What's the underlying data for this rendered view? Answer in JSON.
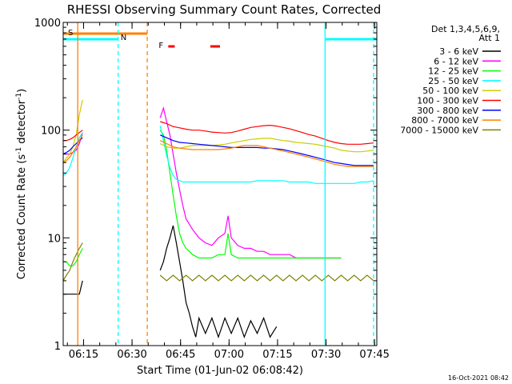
{
  "chart_data": {
    "type": "line",
    "title": "RHESSI Observing Summary Count Rates, Corrected",
    "xlabel": "Start Time (01-Jun-02 06:08:42)",
    "ylabel_main": "Corrected Count Rate (s",
    "ylabel_sup1": "-1",
    "ylabel_mid": " detector",
    "ylabel_sup2": "-1",
    "ylabel_end": ")",
    "yscale": "log",
    "ylim": [
      1,
      1000
    ],
    "xlim_minutes": [
      0,
      97
    ],
    "yticks": [
      {
        "value": 1,
        "label": "1"
      },
      {
        "value": 10,
        "label": "10"
      },
      {
        "value": 100,
        "label": "100"
      },
      {
        "value": 1000,
        "label": "1000"
      }
    ],
    "xticks": [
      {
        "minute": 6.3,
        "label": "06:15"
      },
      {
        "minute": 21.3,
        "label": "06:30"
      },
      {
        "minute": 36.3,
        "label": "06:45"
      },
      {
        "minute": 51.3,
        "label": "07:00"
      },
      {
        "minute": 66.3,
        "label": "07:15"
      },
      {
        "minute": 81.3,
        "label": "07:30"
      },
      {
        "minute": 96.3,
        "label": "07:45"
      }
    ],
    "legend_header": [
      "Det 1,3,4,5,6,9,",
      "Att 1"
    ],
    "legend_position": "right",
    "series": [
      {
        "name": "3 - 6 keV",
        "color": "#000000",
        "t": [
          0,
          1,
          2,
          3,
          4,
          5,
          6,
          30,
          31,
          32,
          33,
          34,
          35,
          36,
          37,
          38,
          39,
          40,
          41,
          42,
          44,
          46,
          48,
          50,
          52,
          54,
          56,
          58,
          60,
          62,
          64,
          66
        ],
        "v": [
          3,
          3,
          3,
          3,
          3,
          3,
          4,
          5,
          6,
          8,
          10,
          13,
          9,
          6,
          4,
          2.5,
          2,
          1.5,
          1.2,
          1.8,
          1.3,
          1.8,
          1.2,
          1.8,
          1.3,
          1.8,
          1.2,
          1.7,
          1.3,
          1.8,
          1.2,
          1.5
        ]
      },
      {
        "name": "6 - 12 keV",
        "color": "#ff00ff",
        "t": [
          0,
          1,
          2,
          3,
          4,
          5,
          6,
          30,
          31,
          32,
          33,
          34,
          35,
          36,
          37,
          38,
          40,
          42,
          44,
          46,
          48,
          50,
          51,
          52,
          54,
          56,
          58,
          60,
          62,
          64,
          66,
          68,
          70,
          72,
          74,
          76,
          78,
          80,
          82,
          84,
          86
        ],
        "v": [
          60,
          60,
          60,
          62,
          65,
          75,
          95,
          130,
          160,
          120,
          90,
          60,
          40,
          28,
          20,
          15,
          12,
          10,
          9,
          8.5,
          10,
          11,
          16,
          10,
          8.5,
          8,
          8,
          7.5,
          7.5,
          7,
          7,
          7,
          7,
          6.5,
          6.5,
          6.5,
          6.5,
          6.5,
          6.5,
          6.5,
          6.5
        ]
      },
      {
        "name": "12 - 25 keV",
        "color": "#00ff00",
        "t": [
          0,
          1,
          2,
          3,
          4,
          5,
          6,
          30,
          31,
          32,
          33,
          34,
          35,
          36,
          37,
          38,
          40,
          42,
          44,
          46,
          48,
          50,
          51,
          52,
          54,
          56,
          58,
          60,
          62,
          64,
          66,
          68,
          70,
          72,
          74,
          76,
          78,
          80,
          82,
          84,
          86
        ],
        "v": [
          6,
          6,
          5.5,
          5.5,
          6,
          7,
          8,
          100,
          90,
          65,
          40,
          25,
          16,
          11,
          9,
          8,
          7,
          6.5,
          6.5,
          6.5,
          7,
          7,
          11,
          7,
          6.5,
          6.5,
          6.5,
          6.5,
          6.5,
          6.5,
          6.5,
          6.5,
          6.5,
          6.5,
          6.5,
          6.5,
          6.5,
          6.5,
          6.5,
          6.5,
          6.5
        ]
      },
      {
        "name": "25 - 50 keV",
        "color": "#00ffff",
        "t": [
          0,
          1,
          2,
          3,
          4,
          5,
          6,
          30,
          31,
          32,
          33,
          34,
          35,
          36,
          37,
          38,
          40,
          42,
          44,
          46,
          48,
          50,
          52,
          54,
          56,
          58,
          60,
          62,
          64,
          66,
          68,
          70,
          72,
          74,
          76,
          78,
          80,
          82,
          84,
          86,
          88,
          90,
          92,
          94,
          96
        ],
        "v": [
          38,
          40,
          45,
          55,
          70,
          85,
          95,
          110,
          80,
          58,
          45,
          38,
          35,
          34,
          33,
          33,
          33,
          33,
          33,
          33,
          33,
          33,
          33,
          33,
          33,
          33,
          34,
          34,
          34,
          34,
          34,
          33,
          33,
          33,
          33,
          32,
          32,
          32,
          32,
          32,
          32,
          32,
          33,
          33,
          34
        ]
      },
      {
        "name": "50 - 100 keV",
        "color": "#cccc00",
        "t": [
          0,
          1,
          2,
          3,
          4,
          5,
          6,
          30,
          32,
          34,
          36,
          38,
          40,
          42,
          44,
          46,
          48,
          50,
          52,
          54,
          56,
          58,
          60,
          62,
          64,
          66,
          68,
          70,
          72,
          74,
          76,
          78,
          80,
          82,
          84,
          86,
          88,
          90,
          92,
          94,
          96
        ],
        "v": [
          50,
          55,
          60,
          70,
          90,
          140,
          190,
          75,
          70,
          68,
          68,
          70,
          72,
          72,
          72,
          72,
          73,
          74,
          76,
          78,
          80,
          82,
          83,
          84,
          84,
          82,
          80,
          79,
          77,
          76,
          75,
          74,
          72,
          70,
          68,
          65,
          64,
          63,
          63,
          64,
          65
        ]
      },
      {
        "name": "100 - 300 keV",
        "color": "#ff0000",
        "t": [
          0,
          1,
          2,
          3,
          4,
          5,
          6,
          30,
          32,
          34,
          36,
          38,
          40,
          42,
          44,
          46,
          48,
          50,
          52,
          54,
          56,
          58,
          60,
          62,
          64,
          66,
          68,
          70,
          72,
          74,
          76,
          78,
          80,
          82,
          84,
          86,
          88,
          90,
          92,
          94,
          96
        ],
        "v": [
          80,
          80,
          82,
          85,
          90,
          95,
          100,
          120,
          115,
          108,
          105,
          102,
          100,
          100,
          98,
          96,
          95,
          94,
          95,
          98,
          102,
          106,
          108,
          110,
          111,
          109,
          106,
          103,
          99,
          95,
          91,
          88,
          84,
          80,
          77,
          75,
          74,
          74,
          74,
          75,
          76
        ]
      },
      {
        "name": "300 - 800 keV",
        "color": "#0000ff",
        "t": [
          0,
          1,
          2,
          3,
          4,
          5,
          6,
          30,
          32,
          34,
          36,
          38,
          40,
          42,
          44,
          46,
          48,
          50,
          52,
          54,
          56,
          58,
          60,
          62,
          64,
          66,
          68,
          70,
          72,
          74,
          76,
          78,
          80,
          82,
          84,
          86,
          88,
          90,
          92,
          94,
          96
        ],
        "v": [
          60,
          62,
          65,
          70,
          75,
          80,
          85,
          90,
          85,
          80,
          77,
          76,
          75,
          74,
          73,
          72,
          71,
          70,
          69,
          69,
          69,
          69,
          69,
          68,
          68,
          67,
          66,
          64,
          62,
          60,
          58,
          56,
          54,
          52,
          50,
          49,
          48,
          47,
          47,
          47,
          47
        ]
      },
      {
        "name": "800 - 7000 keV",
        "color": "#ff8000",
        "t": [
          0,
          1,
          2,
          3,
          4,
          5,
          6,
          30,
          32,
          34,
          36,
          38,
          40,
          42,
          44,
          46,
          48,
          50,
          52,
          54,
          56,
          58,
          60,
          62,
          64,
          66,
          68,
          70,
          72,
          74,
          76,
          78,
          80,
          82,
          84,
          86,
          88,
          90,
          92,
          94,
          96
        ],
        "v": [
          50,
          52,
          56,
          62,
          70,
          80,
          90,
          80,
          75,
          70,
          68,
          67,
          66,
          66,
          66,
          66,
          66,
          67,
          68,
          70,
          72,
          72,
          72,
          70,
          68,
          66,
          64,
          62,
          60,
          58,
          56,
          54,
          52,
          50,
          48,
          47,
          46,
          46,
          46,
          46,
          46
        ]
      },
      {
        "name": "7000 - 15000 keV",
        "color": "#808000",
        "t": [
          0,
          1,
          2,
          3,
          4,
          5,
          6,
          30,
          32,
          34,
          36,
          38,
          40,
          42,
          44,
          46,
          48,
          50,
          52,
          54,
          56,
          58,
          60,
          62,
          64,
          66,
          68,
          70,
          72,
          74,
          76,
          78,
          80,
          82,
          84,
          86,
          88,
          90,
          92,
          94,
          96
        ],
        "v": [
          4,
          4.5,
          5,
          6,
          7,
          8,
          9,
          4.5,
          4,
          4.5,
          4,
          4.5,
          4,
          4.5,
          4,
          4.5,
          4,
          4.5,
          4,
          4.5,
          4,
          4.5,
          4,
          4.5,
          4,
          4.5,
          4,
          4.5,
          4,
          4.5,
          4,
          4.5,
          4,
          4.5,
          4,
          4.5,
          4,
          4.5,
          4,
          4.5,
          4
        ]
      }
    ],
    "annotations": [
      {
        "type": "attenuator-state-bar",
        "label": "S",
        "color": "#ff8000",
        "start_minute": 0,
        "end_minute": 26
      },
      {
        "type": "night-bar",
        "label": "N",
        "color": "#00ffff",
        "segments": [
          [
            0,
            17
          ],
          [
            81,
            97
          ]
        ]
      },
      {
        "type": "flare-marker",
        "label": "F",
        "color": "#ff0000",
        "segments": [
          [
            32.5,
            34.5
          ],
          [
            45.5,
            48.5
          ]
        ]
      },
      {
        "type": "vertical-line",
        "color": "#ff8000",
        "style": "solid",
        "minute": 4.5
      },
      {
        "type": "vertical-line",
        "color": "#00ffff",
        "style": "dashed",
        "minute": 17
      },
      {
        "type": "vertical-line",
        "color": "#ff8000",
        "style": "dashed",
        "minute": 26
      },
      {
        "type": "vertical-line",
        "color": "#00ffff",
        "style": "solid",
        "minute": 81
      },
      {
        "type": "vertical-line",
        "color": "#00ffff",
        "style": "dashed",
        "minute": 96
      }
    ],
    "data_gap_minutes": [
      6.5,
      29.5
    ],
    "timestamp": "16-Oct-2021 08:42"
  }
}
